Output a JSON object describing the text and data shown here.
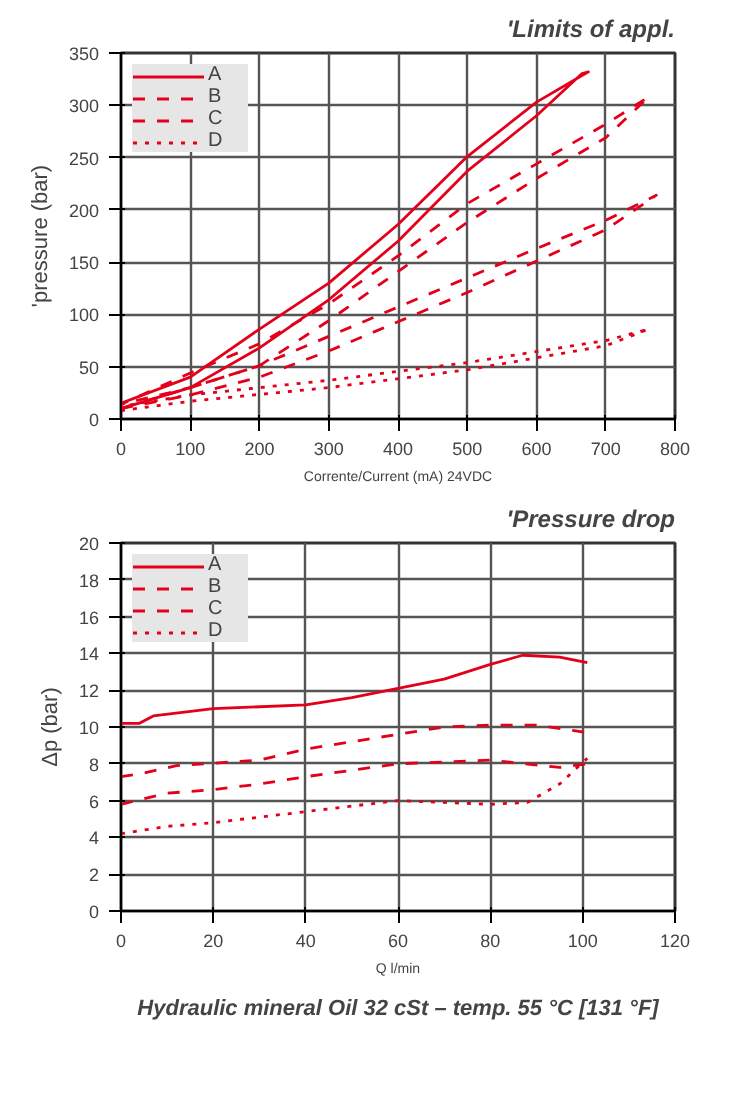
{
  "chart_data": [
    {
      "type": "line",
      "title": "'Limits of appl.",
      "xlabel": "Corrente/Current (mA) 24VDC",
      "ylabel": "'pressure (bar)",
      "xlim": [
        0,
        800
      ],
      "ylim": [
        0,
        350
      ],
      "xticks": [
        0,
        100,
        200,
        300,
        400,
        500,
        600,
        700,
        800
      ],
      "yticks": [
        0,
        50,
        100,
        150,
        200,
        250,
        300,
        350
      ],
      "grid": true,
      "legend": "top left",
      "series": [
        {
          "name": "A",
          "color": "#e3001b",
          "line_style": "solid",
          "x": [
            0,
            100,
            200,
            300,
            400,
            500,
            600,
            665,
            675,
            600,
            500,
            400,
            300,
            200,
            100,
            0
          ],
          "values": [
            10,
            30,
            68,
            114,
            170,
            237,
            290,
            330,
            332,
            303,
            251,
            186,
            130,
            86,
            40,
            15
          ]
        },
        {
          "name": "B",
          "color": "#e3001b",
          "line_style": "dashed",
          "x": [
            0,
            100,
            200,
            300,
            400,
            500,
            600,
            700,
            762,
            700,
            600,
            500,
            400,
            300,
            200,
            100,
            0
          ],
          "values": [
            10,
            30,
            51,
            94,
            141,
            188,
            230,
            269,
            308,
            282,
            244,
            206,
            156,
            110,
            72,
            44,
            14
          ]
        },
        {
          "name": "C",
          "color": "#e3001b",
          "line_style": "dashed",
          "x": [
            0,
            100,
            200,
            300,
            400,
            500,
            600,
            700,
            773,
            700,
            600,
            500,
            400,
            300,
            200,
            100,
            0
          ],
          "values": [
            10,
            23,
            40,
            65,
            93,
            121,
            151,
            181,
            214,
            190,
            163,
            135,
            107,
            79,
            51,
            30,
            14
          ]
        },
        {
          "name": "D",
          "color": "#e3001b",
          "line_style": "dotted",
          "x": [
            0,
            100,
            300,
            500,
            700,
            762,
            700,
            500,
            300,
            100,
            0
          ],
          "values": [
            8,
            17,
            30,
            47,
            70,
            86,
            75,
            54,
            37,
            23,
            12
          ]
        }
      ]
    },
    {
      "type": "line",
      "title": "'Pressure drop",
      "xlabel": "Q l/min",
      "ylabel": "Δp (bar)",
      "xlim": [
        0,
        120
      ],
      "ylim": [
        0,
        20
      ],
      "xticks": [
        0,
        20,
        40,
        60,
        80,
        100,
        120
      ],
      "yticks": [
        0,
        2,
        4,
        6,
        8,
        10,
        12,
        14,
        16,
        18,
        20
      ],
      "grid": true,
      "legend": "top left",
      "annotations": [
        "Hydraulic mineral Oil 32 cSt – temp. 55 °C [131 °F]"
      ],
      "series": [
        {
          "name": "A",
          "color": "#e3001b",
          "line_style": "solid",
          "x": [
            0,
            4,
            7,
            20,
            40,
            50,
            60,
            70,
            80,
            87,
            95,
            101
          ],
          "values": [
            10.2,
            10.2,
            10.6,
            11,
            11.2,
            11.6,
            12.1,
            12.6,
            13.4,
            13.9,
            13.8,
            13.5
          ]
        },
        {
          "name": "B",
          "color": "#e3001b",
          "line_style": "dashed",
          "x": [
            0,
            5,
            12,
            30,
            40,
            60,
            70,
            80,
            90,
            101
          ],
          "values": [
            7.3,
            7.5,
            7.9,
            8.2,
            8.8,
            9.6,
            10,
            10.1,
            10.1,
            9.7
          ]
        },
        {
          "name": "C",
          "color": "#e3001b",
          "line_style": "dashed",
          "x": [
            0,
            10,
            20,
            30,
            40,
            60,
            80,
            95,
            101
          ],
          "values": [
            5.8,
            6.4,
            6.6,
            6.9,
            7.3,
            8,
            8.2,
            7.8,
            8.0
          ]
        },
        {
          "name": "D",
          "color": "#e3001b",
          "line_style": "dotted",
          "x": [
            0,
            10,
            20,
            40,
            60,
            80,
            88,
            95,
            101
          ],
          "values": [
            4.2,
            4.6,
            4.8,
            5.4,
            6,
            5.8,
            5.9,
            6.9,
            8.3
          ]
        }
      ]
    }
  ]
}
